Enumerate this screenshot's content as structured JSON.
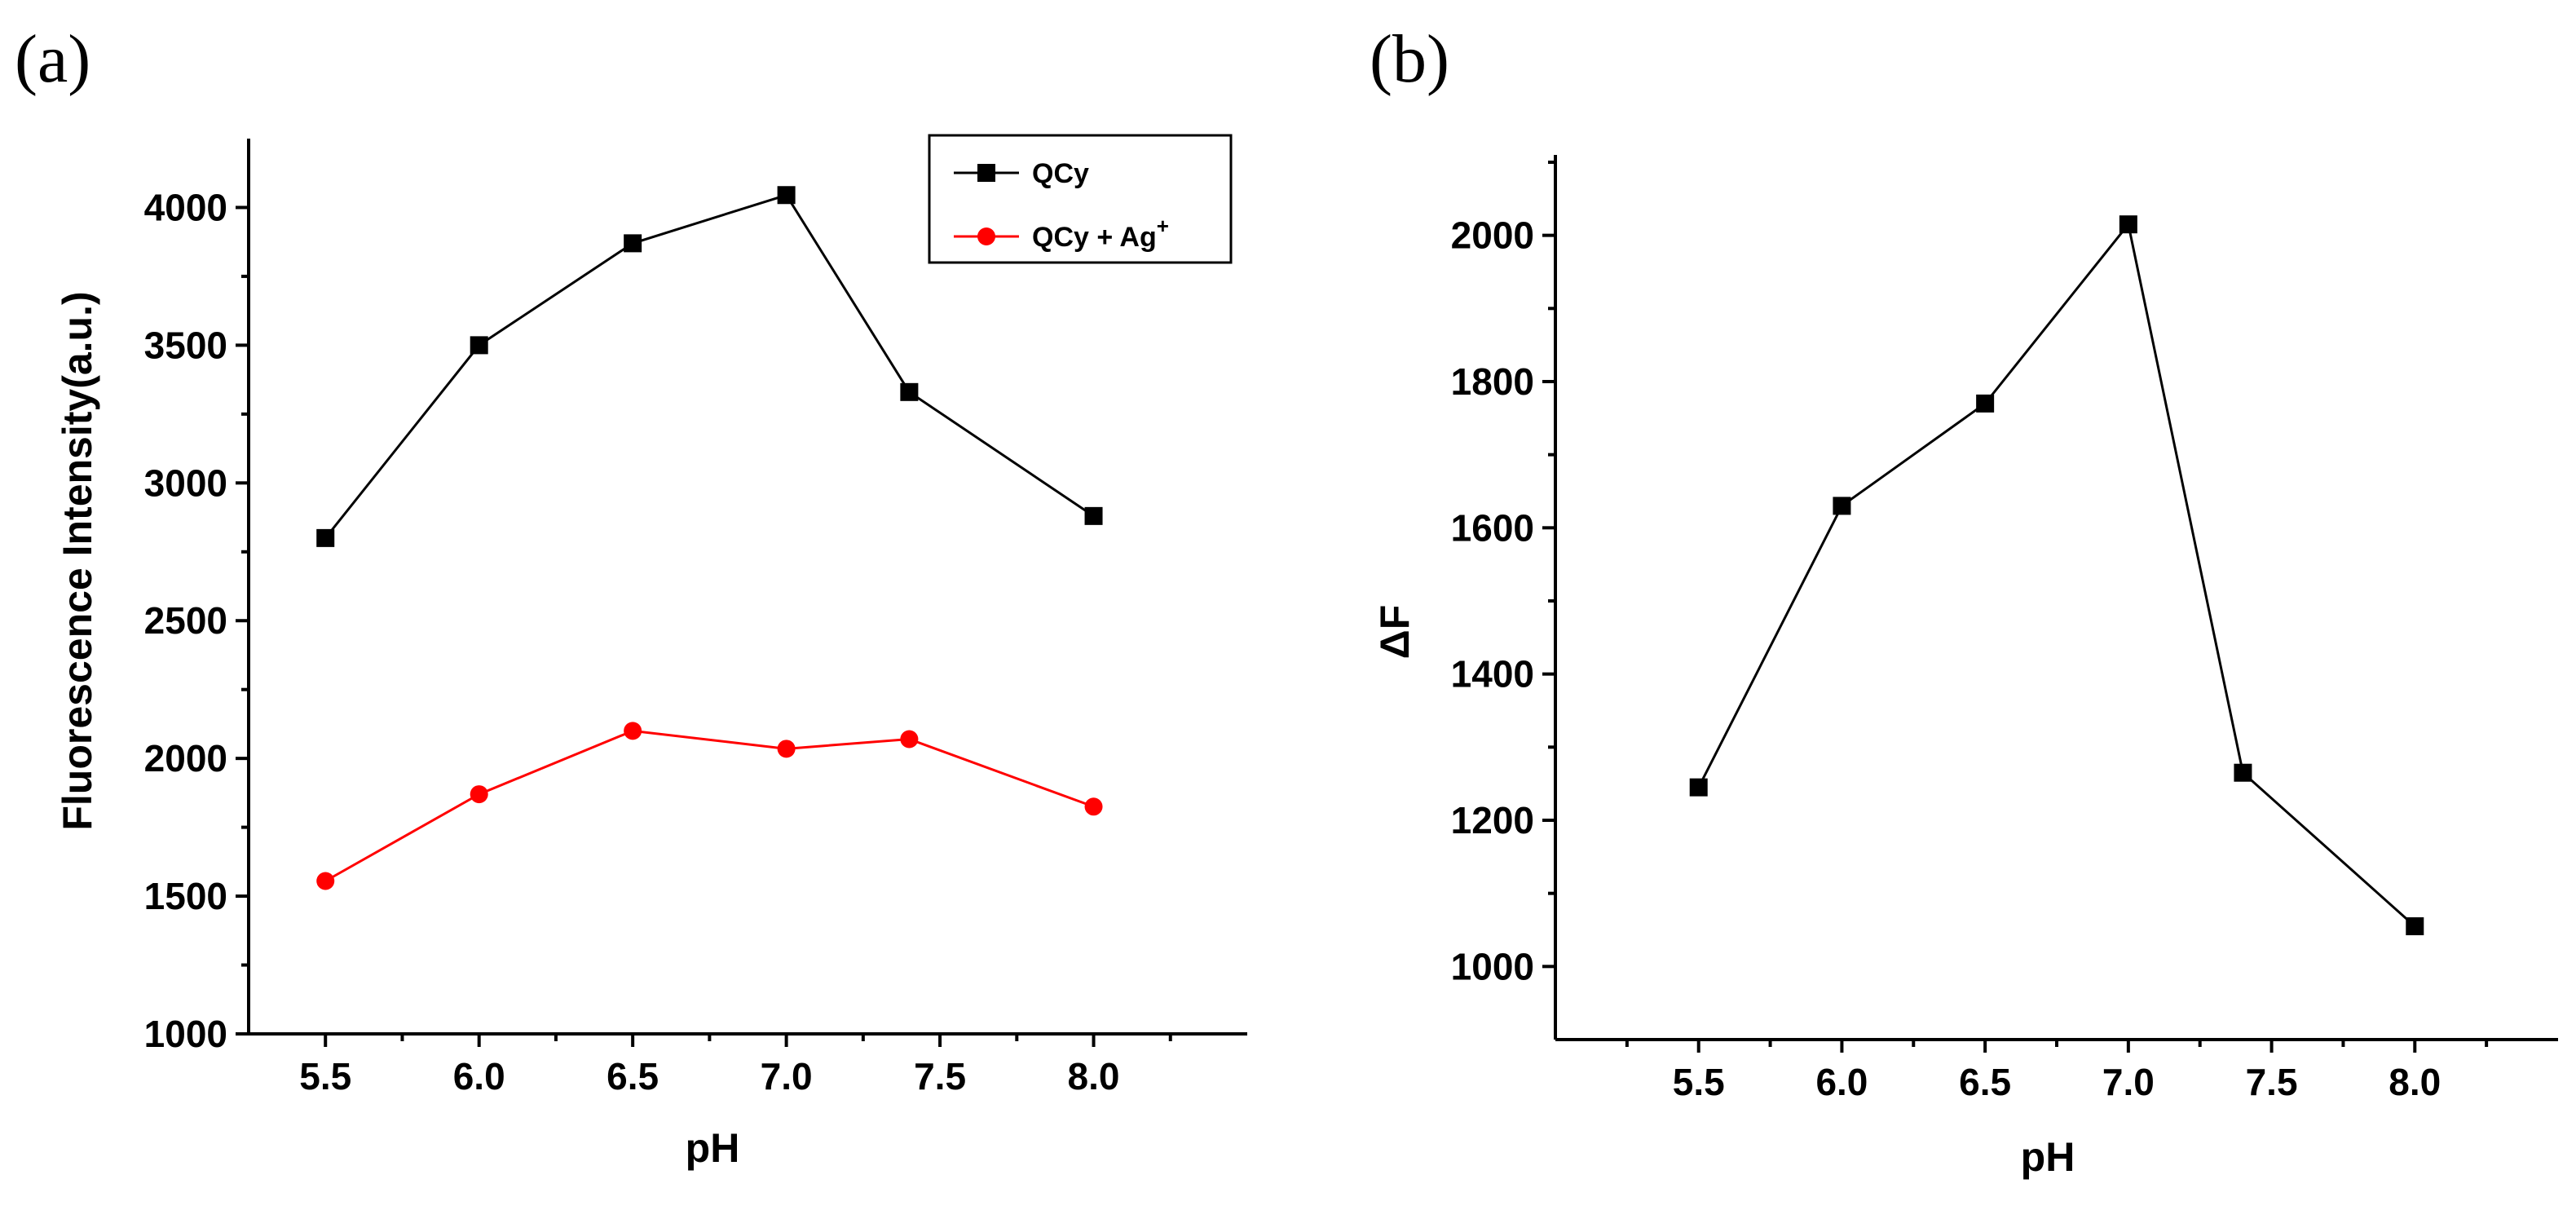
{
  "chart_data": [
    {
      "type": "line",
      "panel_label": "(a)",
      "title": "",
      "xlabel": "pH",
      "ylabel": "Fluorescence Intensity(a.u.)",
      "xlim": [
        5.25,
        8.5
      ],
      "ylim": [
        1000,
        4250
      ],
      "xticks": [
        5.5,
        6.0,
        6.5,
        7.0,
        7.5,
        8.0
      ],
      "xtick_labels": [
        "5.5",
        "6.0",
        "6.5",
        "7.0",
        "7.5",
        "8.0"
      ],
      "yticks": [
        1000,
        1500,
        2000,
        2500,
        3000,
        3500,
        4000
      ],
      "ytick_labels": [
        "1000",
        "1500",
        "2000",
        "2500",
        "3000",
        "3500",
        "4000"
      ],
      "legend_position": "top-right",
      "series": [
        {
          "name": "QCy",
          "label_main": "QCy",
          "label_sup": "",
          "color": "#000000",
          "marker": "square",
          "x": [
            5.5,
            6.0,
            6.5,
            7.0,
            7.4,
            8.0
          ],
          "values": [
            2800,
            3500,
            3870,
            4045,
            3330,
            2880
          ]
        },
        {
          "name": "QCy + Ag+",
          "label_main": "QCy + Ag",
          "label_sup": "+",
          "color": "#ff0000",
          "marker": "circle",
          "x": [
            5.5,
            6.0,
            6.5,
            7.0,
            7.4,
            8.0
          ],
          "values": [
            1555,
            1870,
            2100,
            2035,
            2070,
            1825
          ]
        }
      ]
    },
    {
      "type": "line",
      "panel_label": "(b)",
      "title": "",
      "xlabel": "pH",
      "ylabel": "ΔF",
      "xlim": [
        5.0,
        8.5
      ],
      "ylim": [
        900,
        2110
      ],
      "xticks": [
        5.5,
        6.0,
        6.5,
        7.0,
        7.5,
        8.0
      ],
      "xtick_labels": [
        "5.5",
        "6.0",
        "6.5",
        "7.0",
        "7.5",
        "8.0"
      ],
      "yticks": [
        1000,
        1200,
        1400,
        1600,
        1800,
        2000
      ],
      "ytick_labels": [
        "1000",
        "1200",
        "1400",
        "1600",
        "1800",
        "2000"
      ],
      "series": [
        {
          "name": "ΔF",
          "color": "#000000",
          "marker": "square",
          "x": [
            5.5,
            6.0,
            6.5,
            7.0,
            7.4,
            8.0
          ],
          "values": [
            1245,
            1630,
            1770,
            2015,
            1265,
            1055
          ]
        }
      ]
    }
  ]
}
